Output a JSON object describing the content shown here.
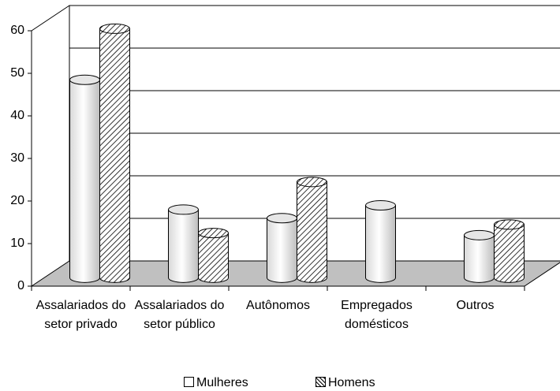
{
  "chart_data": {
    "type": "bar",
    "categories": [
      "Assalariados do setor privado",
      "Assalariados do setor público",
      "Autônomos",
      "Empregados domésticos",
      "Outros"
    ],
    "series": [
      {
        "name": "Mulheres",
        "color": "#ffffff",
        "hatch": false,
        "values": [
          46.5,
          16,
          14,
          17,
          10
        ]
      },
      {
        "name": "Homens",
        "color": "#ffffff",
        "hatch": true,
        "values": [
          58.5,
          10.5,
          22.5,
          null,
          12.5
        ]
      }
    ],
    "ylim": [
      0,
      60
    ],
    "yticks": [
      0,
      10,
      20,
      30,
      40,
      50,
      60
    ],
    "grid": true,
    "floor_color": "#c0c0c0",
    "legend": "bottom"
  }
}
